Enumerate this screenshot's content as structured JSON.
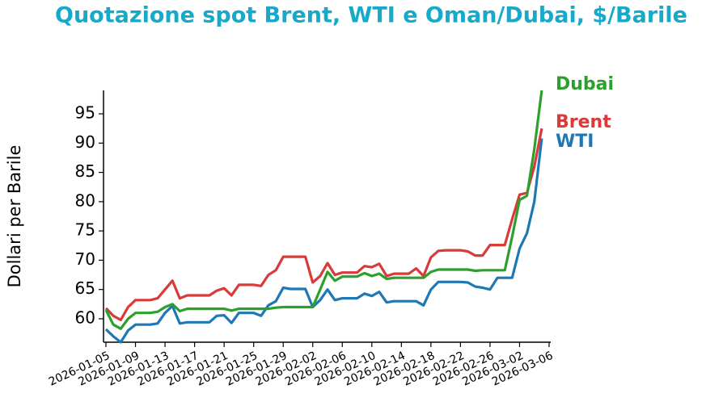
{
  "chart_data": {
    "type": "line",
    "title": "Quotazione spot Brent, WTI e Oman/Dubai, $/Barile",
    "y_label": "Dollari per Barile",
    "x": [
      "2026-01-05",
      "2026-01-06",
      "2026-01-07",
      "2026-01-08",
      "2026-01-09",
      "2026-01-10",
      "2026-01-11",
      "2026-01-12",
      "2026-01-13",
      "2026-01-14",
      "2026-01-15",
      "2026-01-16",
      "2026-01-17",
      "2026-01-18",
      "2026-01-19",
      "2026-01-20",
      "2026-01-21",
      "2026-01-22",
      "2026-01-23",
      "2026-01-24",
      "2026-01-25",
      "2026-01-26",
      "2026-01-27",
      "2026-01-28",
      "2026-01-29",
      "2026-01-30",
      "2026-01-31",
      "2026-02-01",
      "2026-02-02",
      "2026-02-03",
      "2026-02-04",
      "2026-02-05",
      "2026-02-06",
      "2026-02-07",
      "2026-02-08",
      "2026-02-09",
      "2026-02-10",
      "2026-02-11",
      "2026-02-12",
      "2026-02-13",
      "2026-02-14",
      "2026-02-15",
      "2026-02-16",
      "2026-02-17",
      "2026-02-18",
      "2026-02-19",
      "2026-02-20",
      "2026-02-21",
      "2026-02-22",
      "2026-02-23",
      "2026-02-24",
      "2026-02-25",
      "2026-02-26",
      "2026-02-27",
      "2026-02-28",
      "2026-03-01",
      "2026-03-02",
      "2026-03-03",
      "2026-03-04",
      "2026-03-05"
    ],
    "series": [
      {
        "name": "WTI",
        "color": "#1f77b4",
        "values": [
          58.2,
          57,
          56,
          58,
          59,
          59,
          59,
          59.2,
          61,
          62.2,
          59.2,
          59.4,
          59.4,
          59.4,
          59.4,
          60.5,
          60.6,
          59.3,
          61,
          61,
          61,
          60.5,
          62.3,
          63,
          65.3,
          65.1,
          65.1,
          65.1,
          62,
          63.2,
          65,
          63.2,
          63.5,
          63.5,
          63.5,
          64.3,
          63.9,
          64.6,
          62.8,
          63,
          63,
          63,
          63,
          62.3,
          65,
          66.3,
          66.3,
          66.3,
          66.3,
          66.2,
          65.5,
          65.3,
          65,
          67,
          67,
          67,
          72,
          74.6,
          80,
          90.8
        ]
      },
      {
        "name": "Brent",
        "color": "#d93a3a",
        "values": [
          61.8,
          60.5,
          59.8,
          62,
          63.2,
          63.2,
          63.2,
          63.5,
          65,
          66.5,
          63.5,
          64,
          64,
          64,
          64,
          64.8,
          65.2,
          64,
          65.8,
          65.8,
          65.8,
          65.6,
          67.5,
          68.3,
          70.6,
          70.6,
          70.6,
          70.6,
          66.2,
          67.3,
          69.5,
          67.5,
          67.9,
          67.9,
          67.9,
          69,
          68.8,
          69.4,
          67.3,
          67.7,
          67.7,
          67.7,
          68.6,
          67.3,
          70.5,
          71.6,
          71.7,
          71.7,
          71.7,
          71.5,
          70.8,
          70.8,
          72.6,
          72.6,
          72.6,
          77,
          81.2,
          81.5,
          86,
          92.5
        ]
      },
      {
        "name": "Dubai",
        "color": "#2ca02c",
        "values": [
          61.5,
          59,
          58.3,
          60,
          61,
          61,
          61,
          61.2,
          62,
          62.5,
          61.3,
          61.7,
          61.7,
          61.7,
          61.7,
          61.7,
          61.7,
          61.4,
          61.7,
          61.7,
          61.7,
          61.7,
          61.7,
          61.9,
          62,
          62,
          62,
          62,
          62,
          65,
          68,
          66.5,
          67.2,
          67.2,
          67.2,
          67.8,
          67.3,
          67.7,
          66.8,
          67,
          67,
          67,
          67,
          67,
          68,
          68.4,
          68.4,
          68.4,
          68.4,
          68.4,
          68.2,
          68.3,
          68.3,
          68.3,
          68.3,
          74,
          80.3,
          81,
          89,
          99
        ]
      }
    ],
    "xlim": [
      "2026-01-05",
      "2026-03-06"
    ],
    "xticks": [
      "2026-01-05",
      "2026-01-09",
      "2026-01-13",
      "2026-01-17",
      "2026-01-21",
      "2026-01-25",
      "2026-01-29",
      "2026-02-02",
      "2026-02-06",
      "2026-02-10",
      "2026-02-14",
      "2026-02-18",
      "2026-02-22",
      "2026-02-26",
      "2026-03-02",
      "2026-03-06"
    ],
    "ylim": [
      56,
      99
    ],
    "yticks": [
      60,
      65,
      70,
      75,
      80,
      85,
      90,
      95
    ]
  }
}
